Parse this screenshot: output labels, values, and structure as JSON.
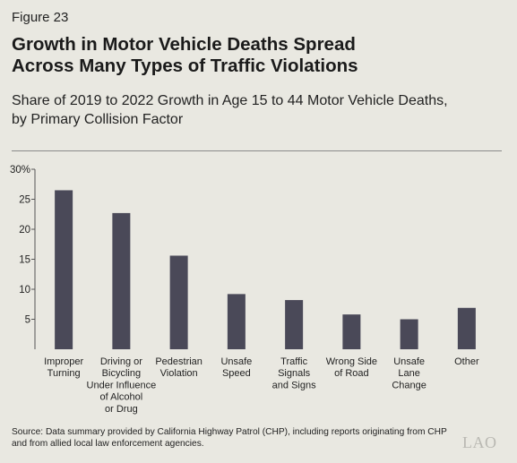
{
  "figure_label": "Figure 23",
  "title_line1": "Growth in Motor Vehicle Deaths Spread",
  "title_line2": "Across Many Types of Traffic Violations",
  "subtitle_line1": "Share of 2019 to 2022 Growth in Age 15 to 44 Motor Vehicle Deaths,",
  "subtitle_line2": "by Primary Collision Factor",
  "source_line1": "Source: Data summary provided by California Highway Patrol (CHP), including reports originating from CHP",
  "source_line2": "and from allied local law enforcement agencies.",
  "logo_text": "LAO",
  "colors": {
    "bar": "#4a4958",
    "background": "#e9e8e1",
    "axis": "#555555"
  },
  "chart_data": {
    "type": "bar",
    "title": "Growth in Motor Vehicle Deaths Spread Across Many Types of Traffic Violations",
    "subtitle": "Share of 2019 to 2022 Growth in Age 15 to 44 Motor Vehicle Deaths, by Primary Collision Factor",
    "categories": [
      [
        "Improper",
        "Turning"
      ],
      [
        "Driving or",
        "Bicycling",
        "Under Influence",
        "of Alcohol",
        "or Drug"
      ],
      [
        "Pedestrian",
        "Violation"
      ],
      [
        "Unsafe",
        "Speed"
      ],
      [
        "Traffic",
        "Signals",
        "and Signs"
      ],
      [
        "Wrong Side",
        "of Road"
      ],
      [
        "Unsafe",
        "Lane",
        "Change"
      ],
      [
        "Other"
      ]
    ],
    "values": [
      26.5,
      22.7,
      15.6,
      9.2,
      8.2,
      5.8,
      5.0,
      6.9
    ],
    "yticks": [
      {
        "value": 5,
        "label": "5"
      },
      {
        "value": 10,
        "label": "10"
      },
      {
        "value": 15,
        "label": "15"
      },
      {
        "value": 20,
        "label": "20"
      },
      {
        "value": 25,
        "label": "25"
      },
      {
        "value": 30,
        "label": "30%"
      }
    ],
    "ylim": [
      0,
      30
    ],
    "xlabel": "",
    "ylabel": "",
    "grid": false,
    "legend": "none"
  }
}
